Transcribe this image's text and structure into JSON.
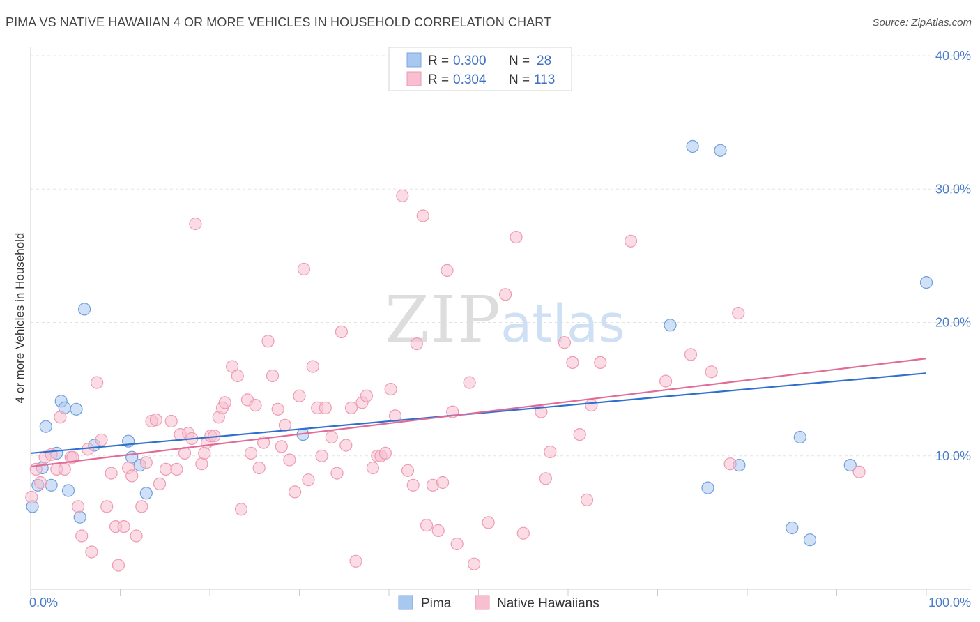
{
  "title": "PIMA VS NATIVE HAWAIIAN 4 OR MORE VEHICLES IN HOUSEHOLD CORRELATION CHART",
  "source": "Source: ZipAtlas.com",
  "watermark": {
    "zip": "ZIP",
    "atlas": "atlas"
  },
  "legend": {
    "r_label": "R =",
    "n_label": "N =",
    "entries": [
      {
        "r": "0.300",
        "n": "28",
        "color": "#a9c8f0",
        "stroke": "#7aa6e0"
      },
      {
        "r": "0.304",
        "n": "113",
        "color": "#f7bfd0",
        "stroke": "#ee9ab5"
      }
    ]
  },
  "bottom_legend": [
    "Pima",
    "Native Hawaiians"
  ],
  "chart_data": {
    "type": "scatter",
    "xlabel": "",
    "ylabel": "4 or more Vehicles in Household",
    "xlim": [
      0,
      100
    ],
    "ylim": [
      0,
      40
    ],
    "x_tick_labels": [
      "0.0%",
      "100.0%"
    ],
    "y_ticks": [
      10,
      20,
      30,
      40
    ],
    "y_tick_labels": [
      "10.0%",
      "20.0%",
      "30.0%",
      "40.0%"
    ],
    "grid": "horizontal dashed",
    "series": [
      {
        "name": "Pima",
        "color": "#a9c8f0",
        "stroke": "#6f9edc",
        "line_color": "#2f6fce",
        "trend": [
          [
            0,
            10.2
          ],
          [
            100,
            16.2
          ]
        ],
        "points": [
          [
            0.2,
            6.2
          ],
          [
            0.8,
            7.8
          ],
          [
            1.3,
            9.1
          ],
          [
            1.7,
            12.2
          ],
          [
            2.3,
            7.8
          ],
          [
            2.9,
            10.2
          ],
          [
            3.4,
            14.1
          ],
          [
            3.8,
            13.6
          ],
          [
            4.2,
            7.4
          ],
          [
            5.1,
            13.5
          ],
          [
            5.5,
            5.4
          ],
          [
            6.0,
            21.0
          ],
          [
            7.1,
            10.8
          ],
          [
            10.9,
            11.1
          ],
          [
            11.3,
            9.9
          ],
          [
            12.2,
            9.3
          ],
          [
            12.9,
            7.2
          ],
          [
            30.4,
            11.6
          ],
          [
            71.4,
            19.8
          ],
          [
            73.9,
            33.2
          ],
          [
            77.0,
            32.9
          ],
          [
            75.6,
            7.6
          ],
          [
            79.1,
            9.3
          ],
          [
            85.0,
            4.6
          ],
          [
            85.9,
            11.4
          ],
          [
            87.0,
            3.7
          ],
          [
            91.5,
            9.3
          ],
          [
            100.0,
            23.0
          ]
        ]
      },
      {
        "name": "Native Hawaiians",
        "color": "#f7bfd0",
        "stroke": "#ee9ab5",
        "line_color": "#e26a96",
        "trend": [
          [
            0,
            9.2
          ],
          [
            100,
            17.3
          ]
        ],
        "points": [
          [
            0.1,
            6.9
          ],
          [
            0.6,
            9.0
          ],
          [
            1.1,
            8.0
          ],
          [
            1.6,
            9.9
          ],
          [
            2.3,
            10.1
          ],
          [
            2.9,
            9.0
          ],
          [
            3.3,
            12.9
          ],
          [
            3.8,
            9.0
          ],
          [
            4.5,
            9.9
          ],
          [
            4.7,
            9.9
          ],
          [
            5.3,
            6.2
          ],
          [
            5.7,
            4.0
          ],
          [
            6.4,
            10.5
          ],
          [
            6.8,
            2.8
          ],
          [
            7.4,
            15.5
          ],
          [
            7.9,
            11.2
          ],
          [
            8.5,
            6.2
          ],
          [
            9.0,
            8.7
          ],
          [
            9.5,
            4.7
          ],
          [
            9.8,
            1.8
          ],
          [
            10.4,
            4.7
          ],
          [
            10.9,
            9.1
          ],
          [
            11.3,
            8.5
          ],
          [
            11.8,
            4.0
          ],
          [
            12.4,
            6.2
          ],
          [
            12.9,
            9.5
          ],
          [
            13.5,
            12.6
          ],
          [
            14.0,
            12.7
          ],
          [
            14.4,
            7.9
          ],
          [
            15.1,
            9.0
          ],
          [
            15.7,
            12.6
          ],
          [
            16.3,
            9.0
          ],
          [
            16.7,
            11.6
          ],
          [
            17.2,
            10.2
          ],
          [
            17.6,
            11.7
          ],
          [
            18.0,
            11.3
          ],
          [
            18.4,
            27.4
          ],
          [
            19.1,
            9.4
          ],
          [
            19.4,
            10.2
          ],
          [
            19.7,
            11.0
          ],
          [
            20.1,
            11.5
          ],
          [
            20.5,
            11.5
          ],
          [
            21.0,
            12.9
          ],
          [
            21.4,
            13.6
          ],
          [
            21.7,
            14.0
          ],
          [
            22.5,
            16.7
          ],
          [
            23.1,
            16.0
          ],
          [
            23.5,
            6.0
          ],
          [
            24.2,
            14.2
          ],
          [
            24.6,
            10.2
          ],
          [
            25.1,
            13.8
          ],
          [
            25.5,
            9.1
          ],
          [
            26.0,
            11.0
          ],
          [
            26.5,
            18.6
          ],
          [
            27.0,
            16.0
          ],
          [
            27.6,
            13.5
          ],
          [
            28.0,
            10.7
          ],
          [
            28.4,
            12.3
          ],
          [
            28.9,
            9.7
          ],
          [
            29.5,
            7.3
          ],
          [
            30.0,
            14.5
          ],
          [
            30.5,
            24.0
          ],
          [
            31.0,
            8.2
          ],
          [
            31.5,
            16.7
          ],
          [
            32.0,
            13.6
          ],
          [
            32.5,
            10.0
          ],
          [
            32.9,
            13.6
          ],
          [
            33.6,
            11.4
          ],
          [
            34.2,
            8.7
          ],
          [
            34.7,
            19.3
          ],
          [
            35.2,
            10.8
          ],
          [
            35.8,
            13.6
          ],
          [
            36.3,
            2.1
          ],
          [
            37.0,
            14.0
          ],
          [
            37.5,
            14.5
          ],
          [
            38.2,
            9.1
          ],
          [
            38.7,
            10.0
          ],
          [
            39.1,
            10.0
          ],
          [
            39.6,
            10.2
          ],
          [
            40.2,
            15.0
          ],
          [
            40.7,
            13.0
          ],
          [
            41.5,
            29.5
          ],
          [
            42.1,
            8.9
          ],
          [
            42.7,
            7.8
          ],
          [
            43.1,
            18.4
          ],
          [
            43.8,
            28.0
          ],
          [
            44.2,
            4.8
          ],
          [
            44.9,
            7.8
          ],
          [
            45.5,
            4.4
          ],
          [
            46.0,
            8.0
          ],
          [
            46.5,
            23.9
          ],
          [
            47.1,
            13.3
          ],
          [
            47.6,
            3.4
          ],
          [
            49.0,
            15.5
          ],
          [
            49.5,
            1.9
          ],
          [
            51.1,
            5.0
          ],
          [
            53.0,
            22.1
          ],
          [
            54.2,
            26.4
          ],
          [
            55.0,
            4.2
          ],
          [
            57.0,
            13.3
          ],
          [
            57.5,
            8.3
          ],
          [
            58.0,
            10.3
          ],
          [
            59.6,
            18.5
          ],
          [
            60.5,
            17.0
          ],
          [
            61.3,
            11.6
          ],
          [
            62.1,
            6.7
          ],
          [
            62.6,
            13.8
          ],
          [
            63.6,
            17.0
          ],
          [
            67.0,
            26.1
          ],
          [
            70.9,
            15.6
          ],
          [
            73.7,
            17.6
          ],
          [
            76.0,
            16.3
          ],
          [
            78.1,
            9.4
          ],
          [
            79.0,
            20.7
          ],
          [
            92.5,
            8.8
          ]
        ]
      }
    ]
  }
}
